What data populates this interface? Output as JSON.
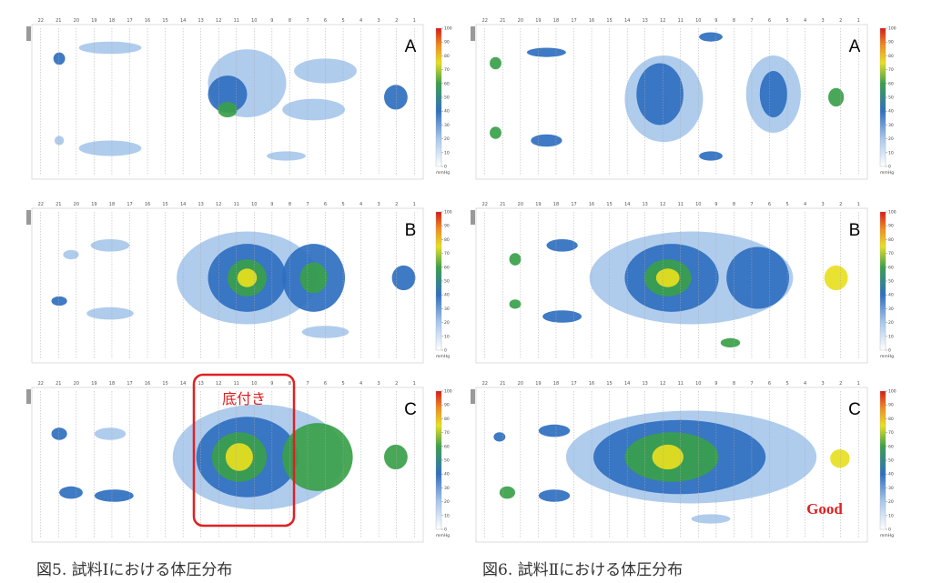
{
  "figures": [
    {
      "caption": "図5. 試料Ⅰにおける体圧分布",
      "annotation": "底付き",
      "panels": [
        {
          "label": "A"
        },
        {
          "label": "B"
        },
        {
          "label": "C"
        }
      ]
    },
    {
      "caption": "図6. 試料Ⅱにおける体圧分布",
      "annotation": "Good",
      "panels": [
        {
          "label": "A"
        },
        {
          "label": "B"
        },
        {
          "label": "C"
        }
      ]
    }
  ],
  "columns": [
    22,
    21,
    20,
    19,
    18,
    17,
    16,
    15,
    14,
    13,
    12,
    11,
    10,
    9,
    8,
    7,
    6,
    5,
    4,
    3,
    2,
    1
  ],
  "colorbar": {
    "ticks": [
      0,
      10,
      20,
      30,
      40,
      50,
      60,
      70,
      80,
      90,
      100
    ],
    "unit": "mmHg"
  }
}
